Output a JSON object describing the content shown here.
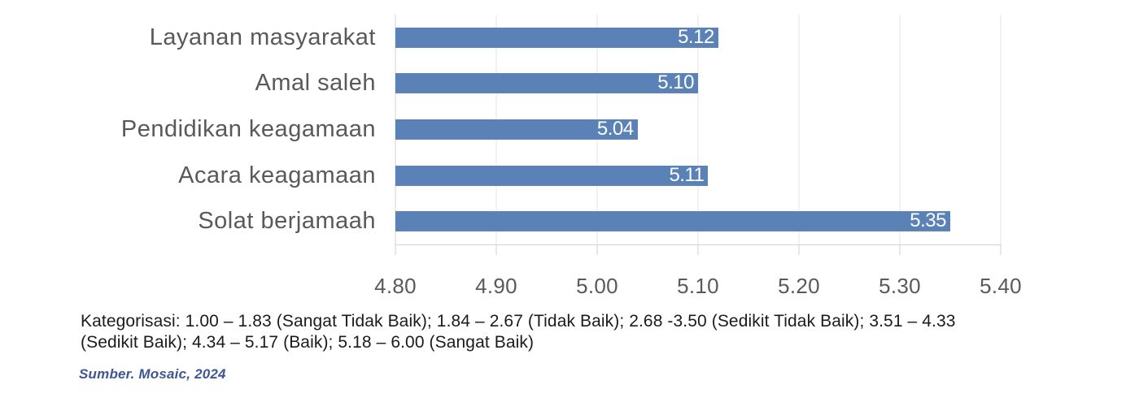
{
  "chart_data": {
    "type": "bar",
    "orientation": "horizontal",
    "title": "",
    "xlabel": "",
    "ylabel": "",
    "categories": [
      "Layanan masyarakat",
      "Amal saleh",
      "Pendidikan keagamaan",
      "Acara keagamaan",
      "Solat berjamaah"
    ],
    "values": [
      5.12,
      5.1,
      5.04,
      5.11,
      5.35
    ],
    "value_labels": [
      "5.12",
      "5.10",
      "5.04",
      "5.11",
      "5.35"
    ],
    "xlim": [
      4.8,
      5.4
    ],
    "x_ticks": [
      "4.80",
      "4.90",
      "5.00",
      "5.10",
      "5.20",
      "5.30",
      "5.40"
    ],
    "grid": true,
    "legend": false
  },
  "colors": {
    "bar": "#5b82b7",
    "value_label": "#ffffff",
    "axis_text": "#595959",
    "gridline": "#e4e4e4",
    "axis_line": "#d2d2d2",
    "footnote_text": "#1b1b1b",
    "source_text": "#3e5693"
  },
  "footnote": {
    "lines": [
      "Kategorisasi: 1.00 – 1.83 (Sangat Tidak Baik); 1.84 – 2.67 (Tidak Baik); 2.68 -3.50 (Sedikit Tidak Baik); 3.51 – 4.33",
      "(Sedikit Baik); 4.34 – 5.17 (Baik); 5.18 – 6.00 (Sangat Baik)"
    ]
  },
  "source": {
    "text": "Sumber. Mosaic, 2024"
  }
}
